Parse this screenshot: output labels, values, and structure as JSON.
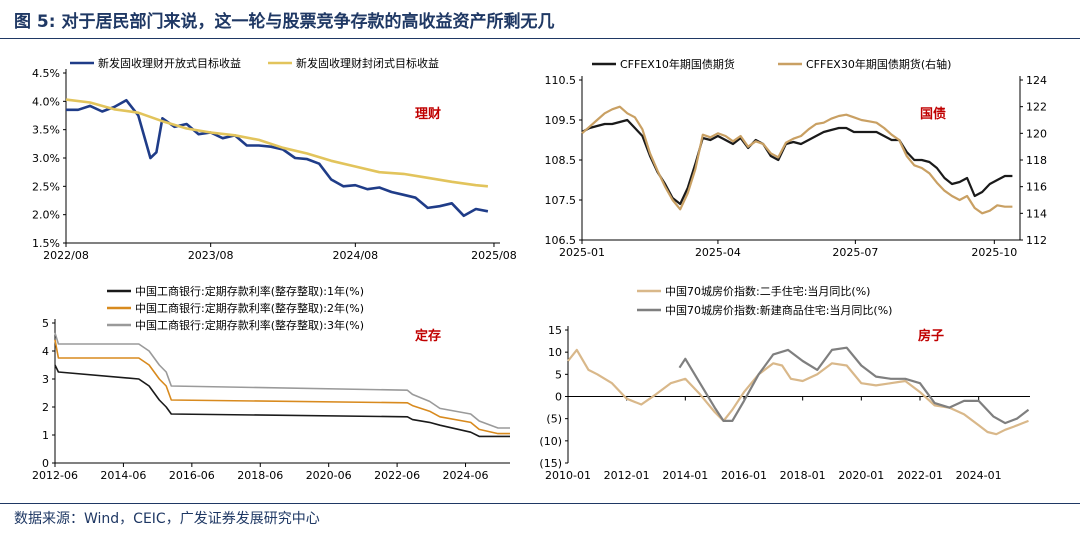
{
  "figure": {
    "title": "图 5: 对于居民部门来说，这一轮与股票竞争存款的高收益资产所剩无几",
    "source": "数据来源：Wind，CEIC，广发证券发展研究中心"
  },
  "colors": {
    "navy": "#1f3c88",
    "gold": "#e2c45c",
    "tan": "#c9a063",
    "black": "#1a1a1a",
    "gray": "#9a9a9a",
    "orange": "#d88a1e",
    "red": "#c00000",
    "brown": "#d9b88a",
    "darkgray": "#7f7f7f"
  },
  "chart_data": [
    {
      "type": "line",
      "tag": "理财",
      "ylim": [
        1.5,
        4.5
      ],
      "yticks": [
        "1.5%",
        "2.0%",
        "2.5%",
        "3.0%",
        "3.5%",
        "4.0%",
        "4.5%"
      ],
      "xticks": [
        "2022/08",
        "2023/08",
        "2024/08",
        "2025/08"
      ],
      "xrange": [
        0,
        36
      ],
      "series": [
        {
          "name": "新发固收理财开放式目标收益",
          "x": [
            0,
            1,
            2,
            3,
            4,
            5,
            6,
            7,
            7.5,
            8,
            9,
            10,
            11,
            12,
            13,
            14,
            15,
            16,
            17,
            18,
            19,
            20,
            21,
            22,
            23,
            24,
            25,
            26,
            27,
            28,
            29,
            30,
            31,
            32,
            33,
            34,
            35
          ],
          "y": [
            3.85,
            3.85,
            3.92,
            3.82,
            3.9,
            4.02,
            3.75,
            3.0,
            3.1,
            3.7,
            3.55,
            3.6,
            3.42,
            3.45,
            3.35,
            3.4,
            3.22,
            3.22,
            3.2,
            3.15,
            3.0,
            2.98,
            2.9,
            2.62,
            2.5,
            2.52,
            2.45,
            2.48,
            2.4,
            2.35,
            2.3,
            2.12,
            2.15,
            2.2,
            1.98,
            2.1,
            2.06
          ]
        },
        {
          "name": "新发固收理财封闭式目标收益",
          "x": [
            0,
            2,
            4,
            6,
            8,
            10,
            12,
            14,
            16,
            18,
            20,
            22,
            24,
            26,
            28,
            30,
            32,
            34,
            35
          ],
          "y": [
            4.03,
            3.98,
            3.86,
            3.8,
            3.65,
            3.52,
            3.45,
            3.4,
            3.32,
            3.18,
            3.08,
            2.95,
            2.85,
            2.75,
            2.72,
            2.65,
            2.58,
            2.52,
            2.5
          ]
        }
      ]
    },
    {
      "type": "line",
      "tag": "国债",
      "ylim_left": [
        106.5,
        110.5
      ],
      "ylim_right": [
        112,
        124
      ],
      "yticks_left": [
        "106.5",
        "107.5",
        "108.5",
        "109.5",
        "110.5"
      ],
      "yticks_right": [
        "112",
        "114",
        "116",
        "118",
        "120",
        "122",
        "124"
      ],
      "xticks": [
        "2025-01",
        "2025-04",
        "2025-07",
        "2025-10"
      ],
      "xrange": [
        0,
        290
      ],
      "series": [
        {
          "name": "CFFEX10年期国债期货",
          "axis": "left",
          "x": [
            0,
            5,
            10,
            15,
            20,
            25,
            30,
            35,
            40,
            45,
            50,
            55,
            60,
            65,
            70,
            75,
            80,
            85,
            90,
            95,
            100,
            105,
            110,
            115,
            120,
            125,
            130,
            135,
            140,
            145,
            150,
            155,
            160,
            165,
            170,
            175,
            180,
            185,
            190,
            195,
            200,
            205,
            210,
            215,
            220,
            225,
            230,
            235,
            240,
            245,
            250,
            255,
            260,
            265,
            270,
            275,
            280,
            285
          ],
          "y": [
            109.2,
            109.3,
            109.35,
            109.4,
            109.4,
            109.45,
            109.5,
            109.3,
            109.1,
            108.6,
            108.2,
            107.9,
            107.55,
            107.4,
            107.8,
            108.4,
            109.05,
            109.0,
            109.1,
            109.0,
            108.9,
            109.05,
            108.8,
            109.0,
            108.9,
            108.6,
            108.5,
            108.9,
            108.95,
            108.9,
            109.0,
            109.1,
            109.2,
            109.25,
            109.3,
            109.3,
            109.2,
            109.2,
            109.2,
            109.2,
            109.1,
            109.0,
            109.0,
            108.7,
            108.5,
            108.5,
            108.45,
            108.3,
            108.05,
            107.9,
            107.95,
            108.05,
            107.6,
            107.7,
            107.9,
            108.0,
            108.1,
            108.1
          ]
        },
        {
          "name": "CFFEX30年期国债期货(右轴)",
          "axis": "right",
          "x": [
            0,
            5,
            10,
            15,
            20,
            25,
            30,
            35,
            40,
            45,
            50,
            55,
            60,
            65,
            70,
            75,
            80,
            85,
            90,
            95,
            100,
            105,
            110,
            115,
            120,
            125,
            130,
            135,
            140,
            145,
            150,
            155,
            160,
            165,
            170,
            175,
            180,
            185,
            190,
            195,
            200,
            205,
            210,
            215,
            220,
            225,
            230,
            235,
            240,
            245,
            250,
            255,
            260,
            265,
            270,
            275,
            280,
            285
          ],
          "y": [
            120.0,
            120.5,
            121.0,
            121.5,
            121.8,
            122.0,
            121.5,
            121.2,
            120.3,
            118.5,
            117.2,
            116.0,
            115.0,
            114.3,
            115.5,
            117.3,
            119.9,
            119.7,
            120.0,
            119.8,
            119.4,
            119.8,
            119.0,
            119.4,
            119.2,
            118.5,
            118.2,
            119.3,
            119.6,
            119.8,
            120.3,
            120.7,
            120.8,
            121.1,
            121.3,
            121.4,
            121.2,
            121.0,
            120.9,
            120.8,
            120.4,
            119.9,
            119.5,
            118.3,
            117.6,
            117.4,
            117.0,
            116.3,
            115.7,
            115.3,
            115.0,
            115.3,
            114.4,
            114.0,
            114.2,
            114.6,
            114.5,
            114.5
          ]
        }
      ]
    },
    {
      "type": "line",
      "tag": "定存",
      "ylim": [
        0,
        5
      ],
      "yticks": [
        "0",
        "1",
        "2",
        "3",
        "4",
        "5"
      ],
      "xticks": [
        "2012-06",
        "2014-06",
        "2016-06",
        "2018-06",
        "2020-06",
        "2022-06",
        "2024-06"
      ],
      "xrange": [
        2012.45,
        2025.75
      ],
      "series": [
        {
          "name": "中国工商银行:定期存款利率(整存整取):1年(%)",
          "x": [
            2012.45,
            2012.55,
            2014.9,
            2015.2,
            2015.35,
            2015.5,
            2015.7,
            2015.85,
            2022.75,
            2022.9,
            2023.4,
            2023.7,
            2024.6,
            2024.85,
            2025.4,
            2025.75
          ],
          "y": [
            3.5,
            3.25,
            3.0,
            2.75,
            2.5,
            2.25,
            2.0,
            1.75,
            1.65,
            1.55,
            1.45,
            1.35,
            1.1,
            0.95,
            0.95,
            0.95
          ]
        },
        {
          "name": "中国工商银行:定期存款利率(整存整取):2年(%)",
          "x": [
            2012.45,
            2012.55,
            2014.9,
            2015.2,
            2015.35,
            2015.5,
            2015.7,
            2015.85,
            2022.75,
            2022.9,
            2023.4,
            2023.7,
            2024.6,
            2024.85,
            2025.4,
            2025.75
          ],
          "y": [
            4.4,
            3.75,
            3.75,
            3.5,
            3.25,
            3.0,
            2.75,
            2.25,
            2.15,
            2.05,
            1.85,
            1.65,
            1.45,
            1.2,
            1.05,
            1.05
          ]
        },
        {
          "name": "中国工商银行:定期存款利率(整存整取):3年(%)",
          "x": [
            2012.45,
            2012.55,
            2014.9,
            2015.2,
            2015.35,
            2015.5,
            2015.7,
            2015.85,
            2022.75,
            2022.9,
            2023.4,
            2023.7,
            2024.6,
            2024.85,
            2025.4,
            2025.75
          ],
          "y": [
            4.65,
            4.25,
            4.25,
            4.0,
            3.75,
            3.5,
            3.25,
            2.75,
            2.6,
            2.45,
            2.2,
            1.95,
            1.75,
            1.5,
            1.25,
            1.25
          ]
        }
      ]
    },
    {
      "type": "line",
      "tag": "房子",
      "ylim": [
        -15,
        15
      ],
      "yticks": [
        "(15)",
        "(10)",
        "(5)",
        "0",
        "5",
        "10",
        "15"
      ],
      "xticks": [
        "2010-01",
        "2012-01",
        "2014-01",
        "2016-01",
        "2018-01",
        "2020-01",
        "2022-01",
        "2024-01"
      ],
      "xrange": [
        2010.0,
        2025.75
      ],
      "series": [
        {
          "name": "中国70城房价指数:二手住宅:当月同比(%)",
          "x": [
            2010.0,
            2010.3,
            2010.7,
            2011.0,
            2011.5,
            2012.0,
            2012.5,
            2013.0,
            2013.5,
            2014.0,
            2014.5,
            2015.0,
            2015.3,
            2015.6,
            2016.0,
            2016.5,
            2017.0,
            2017.3,
            2017.6,
            2018.0,
            2018.5,
            2019.0,
            2019.5,
            2020.0,
            2020.5,
            2021.0,
            2021.5,
            2022.0,
            2022.5,
            2023.0,
            2023.5,
            2024.0,
            2024.3,
            2024.6,
            2024.9,
            2025.2,
            2025.5,
            2025.7
          ],
          "y": [
            8.0,
            10.5,
            6.0,
            5.0,
            3.0,
            -0.5,
            -1.8,
            0.5,
            3.0,
            4.0,
            0.5,
            -3.5,
            -5.5,
            -3.0,
            1.0,
            5.0,
            7.5,
            7.0,
            4.0,
            3.5,
            5.0,
            7.5,
            7.0,
            3.0,
            2.5,
            3.0,
            3.5,
            1.0,
            -2.0,
            -2.5,
            -4.0,
            -6.5,
            -8.0,
            -8.5,
            -7.5,
            -6.8,
            -6.0,
            -5.5
          ]
        },
        {
          "name": "中国70城房价指数:新建商品住宅:当月同比(%)",
          "x": [
            2013.8,
            2014.0,
            2014.5,
            2015.0,
            2015.3,
            2015.6,
            2016.0,
            2016.5,
            2017.0,
            2017.5,
            2018.0,
            2018.5,
            2019.0,
            2019.5,
            2020.0,
            2020.5,
            2021.0,
            2021.5,
            2022.0,
            2022.5,
            2023.0,
            2023.5,
            2024.0,
            2024.5,
            2024.9,
            2025.3,
            2025.7
          ],
          "y": [
            6.5,
            8.5,
            3.0,
            -2.5,
            -5.5,
            -5.5,
            -1.0,
            5.0,
            9.5,
            10.5,
            8.0,
            6.0,
            10.5,
            11.0,
            7.0,
            4.5,
            4.0,
            4.0,
            3.0,
            -1.5,
            -2.5,
            -1.0,
            -1.0,
            -4.5,
            -6.0,
            -5.0,
            -3.0
          ]
        }
      ]
    }
  ]
}
